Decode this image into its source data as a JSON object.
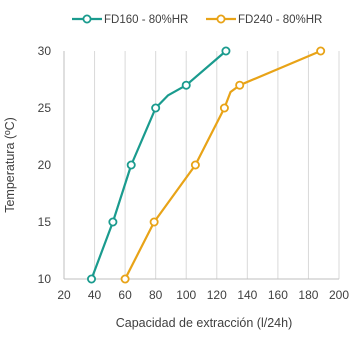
{
  "chart_data": {
    "type": "line",
    "title": "",
    "xlabel": "Capacidad de extracción (l/24h)",
    "ylabel": "Temperatura (ºC)",
    "xlim": [
      20,
      200
    ],
    "ylim": [
      10,
      30
    ],
    "xticks": [
      20,
      40,
      60,
      80,
      100,
      120,
      140,
      160,
      180,
      200
    ],
    "yticks": [
      10,
      15,
      20,
      25,
      30
    ],
    "grid": "x-only",
    "legend_position": "top",
    "series": [
      {
        "name": "FD160 - 80%HR",
        "color": "#1a9b8e",
        "points": [
          [
            38,
            10
          ],
          [
            52,
            15
          ],
          [
            64,
            20
          ],
          [
            80,
            25
          ],
          [
            88,
            26.1
          ],
          [
            100,
            27
          ],
          [
            126,
            30
          ]
        ]
      },
      {
        "name": "FD240 - 80%HR",
        "color": "#e8a317",
        "points": [
          [
            60,
            10
          ],
          [
            79,
            15
          ],
          [
            106,
            20
          ],
          [
            125,
            25
          ],
          [
            129,
            26.4
          ],
          [
            135,
            27
          ],
          [
            188,
            30
          ]
        ]
      }
    ]
  }
}
